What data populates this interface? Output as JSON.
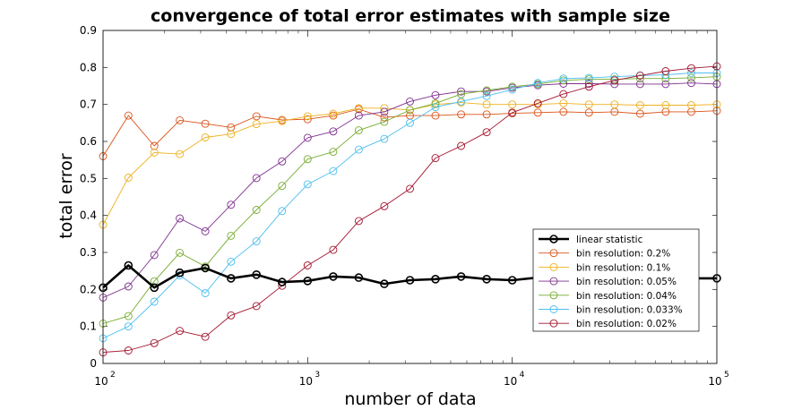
{
  "chart_data": {
    "type": "line",
    "title": "convergence of total error estimates with sample size",
    "xlabel": "number of data",
    "ylabel": "total error",
    "xscale": "log",
    "xlim": [
      100,
      100000
    ],
    "ylim": [
      0,
      0.9
    ],
    "x_ticks": [
      {
        "base": "10",
        "exp": "2"
      },
      {
        "base": "10",
        "exp": "3"
      },
      {
        "base": "10",
        "exp": "4"
      },
      {
        "base": "10",
        "exp": "5"
      }
    ],
    "y_ticks": [
      "0",
      "0.1",
      "0.2",
      "0.3",
      "0.4",
      "0.5",
      "0.6",
      "0.7",
      "0.8",
      "0.9"
    ],
    "legend_position": "lower-right",
    "x": [
      100,
      133,
      178,
      237,
      316,
      422,
      562,
      750,
      1000,
      1334,
      1778,
      2371,
      3162,
      4217,
      5623,
      7499,
      10000,
      13335,
      17783,
      23714,
      31623,
      42170,
      56234,
      74989,
      100000
    ],
    "series": [
      {
        "name": "linear statistic",
        "color": "#000000",
        "values": [
          0.205,
          0.265,
          0.205,
          0.245,
          0.258,
          0.23,
          0.24,
          0.22,
          0.223,
          0.235,
          0.232,
          0.215,
          0.225,
          0.228,
          0.235,
          0.228,
          0.225,
          0.232,
          0.232,
          0.228,
          0.23,
          0.23,
          0.23,
          0.23,
          0.23
        ]
      },
      {
        "name": "bin resolution: 0.2%",
        "color": "#d95319",
        "values": [
          0.56,
          0.67,
          0.588,
          0.657,
          0.648,
          0.638,
          0.668,
          0.658,
          0.66,
          0.67,
          0.687,
          0.665,
          0.67,
          0.67,
          0.673,
          0.673,
          0.676,
          0.678,
          0.68,
          0.678,
          0.68,
          0.675,
          0.68,
          0.68,
          0.683
        ]
      },
      {
        "name": "bin resolution: 0.1%",
        "color": "#edb120",
        "values": [
          0.375,
          0.502,
          0.57,
          0.566,
          0.611,
          0.62,
          0.647,
          0.655,
          0.668,
          0.675,
          0.69,
          0.69,
          0.685,
          0.7,
          0.705,
          0.7,
          0.7,
          0.7,
          0.703,
          0.7,
          0.7,
          0.698,
          0.698,
          0.698,
          0.7
        ]
      },
      {
        "name": "bin resolution: 0.05%",
        "color": "#7e2f8e",
        "values": [
          0.178,
          0.208,
          0.293,
          0.392,
          0.357,
          0.429,
          0.501,
          0.546,
          0.61,
          0.627,
          0.67,
          0.68,
          0.708,
          0.725,
          0.735,
          0.735,
          0.745,
          0.752,
          0.756,
          0.756,
          0.755,
          0.755,
          0.755,
          0.758,
          0.755
        ]
      },
      {
        "name": "bin resolution: 0.04%",
        "color": "#77ac30",
        "values": [
          0.108,
          0.128,
          0.222,
          0.299,
          0.262,
          0.345,
          0.415,
          0.48,
          0.552,
          0.572,
          0.63,
          0.653,
          0.685,
          0.703,
          0.728,
          0.738,
          0.748,
          0.755,
          0.765,
          0.768,
          0.768,
          0.77,
          0.77,
          0.772,
          0.775
        ]
      },
      {
        "name": "bin resolution: 0.033%",
        "color": "#4dbeee",
        "values": [
          0.068,
          0.1,
          0.167,
          0.238,
          0.19,
          0.275,
          0.33,
          0.412,
          0.484,
          0.52,
          0.578,
          0.607,
          0.65,
          0.693,
          0.708,
          0.723,
          0.74,
          0.758,
          0.77,
          0.772,
          0.775,
          0.778,
          0.78,
          0.785,
          0.785
        ]
      },
      {
        "name": "bin resolution: 0.02%",
        "color": "#a2142f",
        "values": [
          0.03,
          0.035,
          0.055,
          0.088,
          0.072,
          0.13,
          0.155,
          0.21,
          0.265,
          0.307,
          0.385,
          0.425,
          0.472,
          0.555,
          0.588,
          0.625,
          0.678,
          0.703,
          0.728,
          0.748,
          0.765,
          0.778,
          0.79,
          0.798,
          0.803
        ]
      }
    ]
  }
}
